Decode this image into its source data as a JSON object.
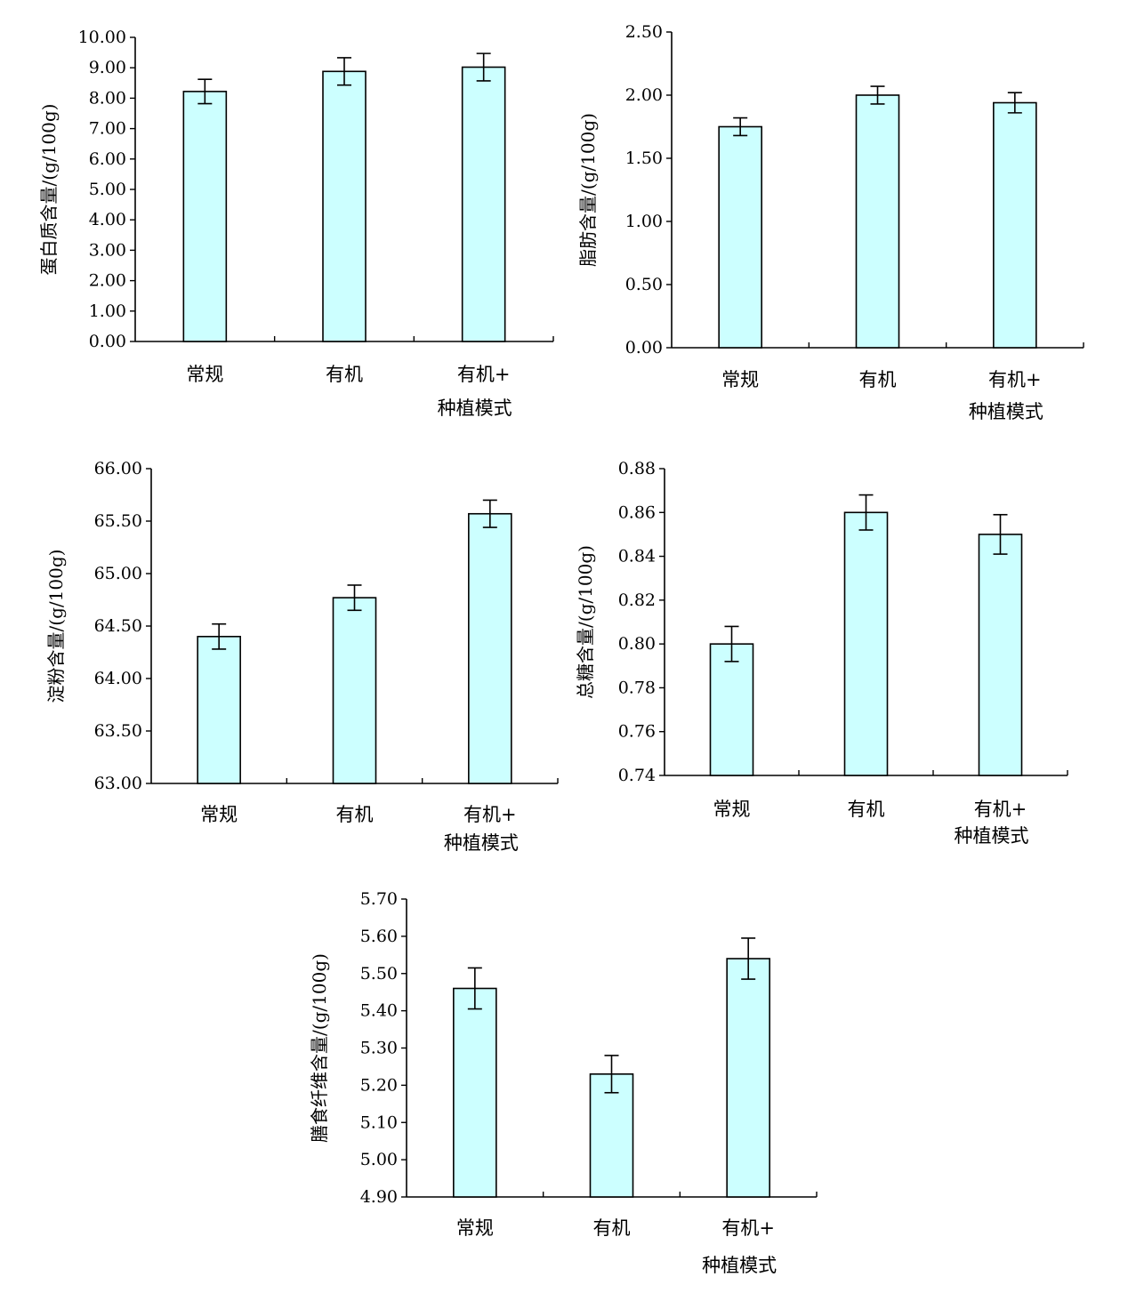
{
  "chart_data": [
    {
      "type": "bar",
      "categories": [
        "常规",
        "有机",
        "有机+\n种植模式"
      ],
      "values": [
        8.22,
        8.88,
        9.02
      ],
      "errors": [
        0.4,
        0.45,
        0.45
      ],
      "ylabel": "蛋白质含量/(g/100g)",
      "ylim": [
        0,
        10
      ],
      "yticks": [
        "0.00",
        "1.00",
        "2.00",
        "3.00",
        "4.00",
        "5.00",
        "6.00",
        "7.00",
        "8.00",
        "9.00",
        "10.00"
      ],
      "bar_color": "#CCFFFF",
      "grid": false
    },
    {
      "type": "bar",
      "categories": [
        "常规",
        "有机",
        "有机+\n种植模式"
      ],
      "values": [
        1.75,
        2.0,
        1.94
      ],
      "errors": [
        0.07,
        0.07,
        0.08
      ],
      "ylabel": "脂肪含量/(g/100g)",
      "ylim": [
        0,
        2.5
      ],
      "yticks": [
        "0.00",
        "0.50",
        "1.00",
        "1.50",
        "2.00",
        "2.50"
      ],
      "bar_color": "#CCFFFF",
      "grid": false
    },
    {
      "type": "bar",
      "categories": [
        "常规",
        "有机",
        "有机+\n种植模式"
      ],
      "values": [
        64.4,
        64.77,
        65.57
      ],
      "errors": [
        0.12,
        0.12,
        0.13
      ],
      "ylabel": "淀粉含量/(g/100g)",
      "ylim": [
        63,
        66
      ],
      "yticks": [
        "63.00",
        "63.50",
        "64.00",
        "64.50",
        "65.00",
        "65.50",
        "66.00"
      ],
      "bar_color": "#CCFFFF",
      "grid": false
    },
    {
      "type": "bar",
      "categories": [
        "常规",
        "有机",
        "有机+\n种植模式"
      ],
      "values": [
        0.8,
        0.86,
        0.85
      ],
      "errors": [
        0.008,
        0.008,
        0.009
      ],
      "ylabel": "总糖含量/(g/100g)",
      "ylim": [
        0.74,
        0.88
      ],
      "yticks": [
        "0.74",
        "0.76",
        "0.78",
        "0.80",
        "0.82",
        "0.84",
        "0.86",
        "0.88"
      ],
      "bar_color": "#CCFFFF",
      "grid": false
    },
    {
      "type": "bar",
      "categories": [
        "常规",
        "有机",
        "有机+\n种植模式"
      ],
      "values": [
        5.46,
        5.23,
        5.54
      ],
      "errors": [
        0.055,
        0.05,
        0.055
      ],
      "ylabel": "膳食纤维含量/(g/100g)",
      "ylim": [
        4.9,
        5.7
      ],
      "yticks": [
        "4.90",
        "5.00",
        "5.10",
        "5.20",
        "5.30",
        "5.40",
        "5.50",
        "5.60",
        "5.70"
      ],
      "bar_color": "#CCFFFF",
      "grid": false
    }
  ]
}
